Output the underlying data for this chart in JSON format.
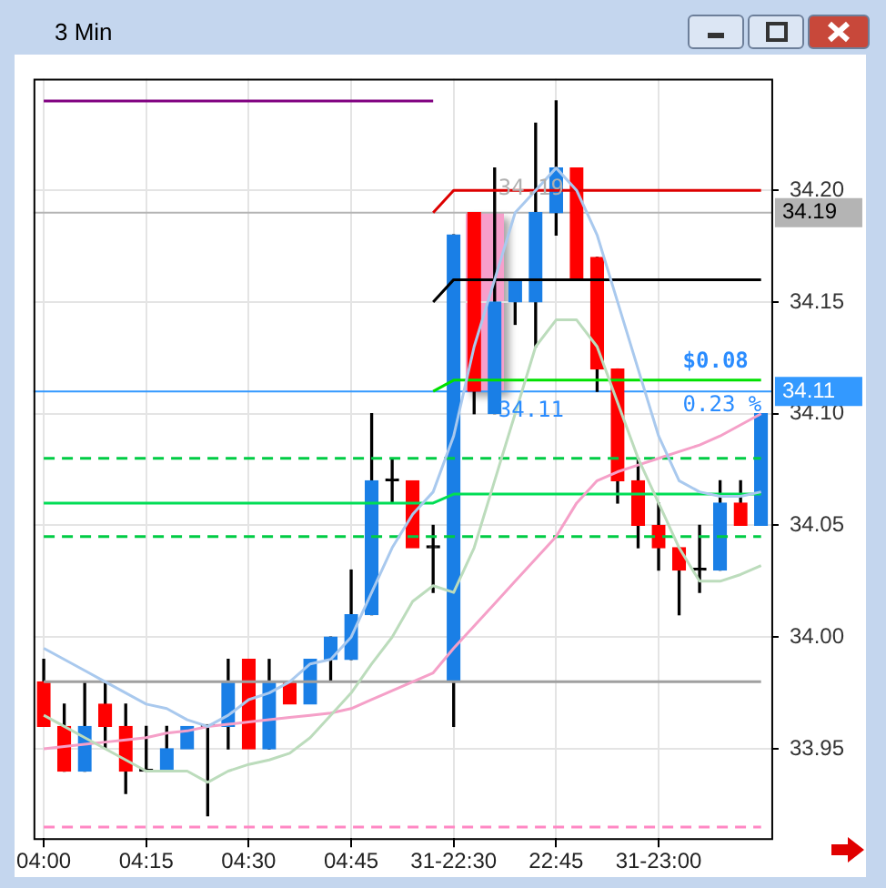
{
  "chart_data": {
    "type": "candlestick",
    "title": "3 Min",
    "categories": [
      "04:00",
      null,
      null,
      null,
      null,
      "04:15",
      null,
      null,
      null,
      null,
      "04:30",
      null,
      null,
      null,
      null,
      "04:45",
      null,
      null,
      null,
      null,
      "31-22:30",
      null,
      null,
      null,
      null,
      "22:45",
      null,
      null,
      null,
      null,
      "31-23:00",
      null,
      null,
      null,
      null,
      null
    ],
    "series": [
      {
        "type": "line",
        "color": "#a9c9ee",
        "values": [
          33.995,
          33.99,
          33.985,
          33.98,
          33.975,
          33.97,
          33.968,
          33.963,
          33.96,
          33.965,
          33.972,
          33.975,
          33.98,
          33.988,
          33.99,
          34.0,
          34.02,
          34.04,
          34.055,
          34.065,
          34.09,
          34.13,
          34.16,
          34.19,
          34.2,
          34.21,
          34.2,
          34.18,
          34.15,
          34.12,
          34.09,
          34.07,
          34.065,
          34.063,
          34.063,
          34.065
        ]
      },
      {
        "type": "line",
        "color": "#bcdcbc",
        "values": [
          33.965,
          33.96,
          33.955,
          33.95,
          33.945,
          33.94,
          33.94,
          33.94,
          33.935,
          33.94,
          33.943,
          33.945,
          33.948,
          33.955,
          33.965,
          33.975,
          33.988,
          34.0,
          34.016,
          34.023,
          34.02,
          34.04,
          34.07,
          34.1,
          34.13,
          34.142,
          34.142,
          34.13,
          34.105,
          34.08,
          34.06,
          34.04,
          34.025,
          34.025,
          34.028,
          34.032
        ]
      },
      {
        "type": "line",
        "color": "#f5a0c8",
        "values": [
          33.95,
          33.951,
          33.952,
          33.953,
          33.954,
          33.955,
          33.957,
          33.958,
          33.96,
          33.961,
          33.962,
          33.963,
          33.964,
          33.965,
          33.966,
          33.968,
          33.972,
          33.976,
          33.98,
          33.984,
          33.995,
          34.005,
          34.015,
          34.025,
          34.035,
          34.045,
          34.06,
          34.07,
          34.074,
          34.077,
          34.08,
          34.083,
          34.086,
          34.09,
          34.095,
          34.1
        ]
      },
      {
        "type": "line",
        "color": "#800080",
        "values": [
          34.24,
          34.24,
          34.24,
          34.24,
          34.24,
          34.24,
          34.24,
          34.24,
          34.24,
          34.24,
          34.24,
          34.24,
          34.24,
          34.24,
          34.24,
          34.24,
          34.24,
          34.24,
          34.24,
          34.24,
          null,
          null,
          null,
          null,
          null,
          null,
          null,
          null,
          null,
          null,
          null,
          null,
          null,
          null,
          null,
          null
        ]
      },
      {
        "type": "line",
        "color": "#dd0000",
        "values": [
          null,
          null,
          null,
          null,
          null,
          null,
          null,
          null,
          null,
          null,
          null,
          null,
          null,
          null,
          null,
          null,
          null,
          null,
          null,
          34.19,
          34.2,
          34.2,
          34.2,
          34.2,
          34.2,
          34.2,
          34.2,
          34.2,
          34.2,
          34.2,
          34.2,
          34.2,
          34.2,
          34.2,
          34.2,
          34.2
        ]
      },
      {
        "type": "line",
        "color": "#000000",
        "values": [
          null,
          null,
          null,
          null,
          null,
          null,
          null,
          null,
          null,
          null,
          null,
          null,
          null,
          null,
          null,
          null,
          null,
          null,
          null,
          34.15,
          34.16,
          34.16,
          34.16,
          34.16,
          34.16,
          34.16,
          34.16,
          34.16,
          34.16,
          34.16,
          34.16,
          34.16,
          34.16,
          34.16,
          34.16,
          34.16
        ]
      },
      {
        "type": "line",
        "color": "#00e000",
        "values": [
          null,
          null,
          null,
          null,
          null,
          null,
          null,
          null,
          null,
          null,
          null,
          null,
          null,
          null,
          null,
          null,
          null,
          null,
          null,
          34.11,
          34.115,
          34.115,
          34.115,
          34.115,
          34.115,
          34.115,
          34.115,
          34.115,
          34.115,
          34.115,
          34.115,
          34.115,
          34.115,
          34.115,
          34.115,
          34.115
        ]
      },
      {
        "type": "line",
        "color": "#00cc44",
        "line_style": "dashed",
        "values": [
          34.08,
          34.08,
          34.08,
          34.08,
          34.08,
          34.08,
          34.08,
          34.08,
          34.08,
          34.08,
          34.08,
          34.08,
          34.08,
          34.08,
          34.08,
          34.08,
          34.08,
          34.08,
          34.08,
          34.08,
          34.08,
          34.08,
          34.08,
          34.08,
          34.08,
          34.08,
          34.08,
          34.08,
          34.08,
          34.08,
          34.08,
          34.08,
          34.08,
          34.08,
          34.08,
          34.08
        ]
      },
      {
        "type": "line",
        "color": "#00dd55",
        "values": [
          34.06,
          34.06,
          34.06,
          34.06,
          34.06,
          34.06,
          34.06,
          34.06,
          34.06,
          34.06,
          34.06,
          34.06,
          34.06,
          34.06,
          34.06,
          34.06,
          34.06,
          34.06,
          34.06,
          34.06,
          34.064,
          34.064,
          34.064,
          34.064,
          34.064,
          34.064,
          34.064,
          34.064,
          34.064,
          34.064,
          34.064,
          34.064,
          34.064,
          34.064,
          34.064,
          34.064
        ]
      },
      {
        "type": "line",
        "color": "#00cc44",
        "line_style": "dashed",
        "values": [
          34.045,
          34.045,
          34.045,
          34.045,
          34.045,
          34.045,
          34.045,
          34.045,
          34.045,
          34.045,
          34.045,
          34.045,
          34.045,
          34.045,
          34.045,
          34.045,
          34.045,
          34.045,
          34.045,
          34.045,
          34.045,
          34.045,
          34.045,
          34.045,
          34.045,
          34.045,
          34.045,
          34.045,
          34.045,
          34.045,
          34.045,
          34.045,
          34.045,
          34.045,
          34.045,
          34.045
        ]
      },
      {
        "type": "line",
        "color": "#a0a0a0",
        "values": [
          33.98,
          33.98,
          33.98,
          33.98,
          33.98,
          33.98,
          33.98,
          33.98,
          33.98,
          33.98,
          33.98,
          33.98,
          33.98,
          33.98,
          33.98,
          33.98,
          33.98,
          33.98,
          33.98,
          33.98,
          33.98,
          33.98,
          33.98,
          33.98,
          33.98,
          33.98,
          33.98,
          33.98,
          33.98,
          33.98,
          33.98,
          33.98,
          33.98,
          33.98,
          33.98,
          33.98
        ]
      },
      {
        "type": "line",
        "color": "#ff88c4",
        "line_style": "dashed",
        "values": [
          33.915,
          33.915,
          33.915,
          33.915,
          33.915,
          33.915,
          33.915,
          33.915,
          33.915,
          33.915,
          33.915,
          33.915,
          33.915,
          33.915,
          33.915,
          33.915,
          33.915,
          33.915,
          33.915,
          33.915,
          33.915,
          33.915,
          33.915,
          33.915,
          33.915,
          33.915,
          33.915,
          33.915,
          33.915,
          33.915,
          33.915,
          33.915,
          33.915,
          33.915,
          33.915,
          33.915
        ]
      },
      {
        "type": "candlestick",
        "ohlc": [
          [
            33.98,
            33.99,
            33.96,
            33.96
          ],
          [
            33.96,
            33.97,
            33.94,
            33.94
          ],
          [
            33.94,
            33.98,
            33.94,
            33.96
          ],
          [
            33.97,
            33.98,
            33.95,
            33.96
          ],
          [
            33.96,
            33.97,
            33.93,
            33.94
          ],
          [
            33.94,
            33.96,
            33.94,
            33.94
          ],
          [
            33.94,
            33.96,
            33.94,
            33.95
          ],
          [
            33.95,
            33.96,
            33.95,
            33.96
          ],
          [
            33.96,
            33.96,
            33.92,
            33.96
          ],
          [
            33.96,
            33.99,
            33.95,
            33.98
          ],
          [
            33.99,
            33.99,
            33.95,
            33.95
          ],
          [
            33.95,
            33.99,
            33.95,
            33.98
          ],
          [
            33.98,
            33.98,
            33.97,
            33.97
          ],
          [
            33.97,
            33.99,
            33.97,
            33.99
          ],
          [
            33.99,
            34.0,
            33.98,
            34.0
          ],
          [
            33.99,
            34.03,
            33.99,
            34.01
          ],
          [
            34.01,
            34.1,
            34.01,
            34.07
          ],
          [
            34.07,
            34.08,
            34.06,
            34.07
          ],
          [
            34.07,
            34.07,
            34.04,
            34.04
          ],
          [
            34.04,
            34.05,
            34.02,
            34.04
          ],
          [
            33.98,
            34.18,
            33.96,
            34.18
          ],
          [
            34.19,
            34.19,
            34.1,
            34.11
          ],
          [
            34.1,
            34.21,
            34.1,
            34.15
          ],
          [
            34.15,
            34.16,
            34.14,
            34.16
          ],
          [
            34.15,
            34.23,
            34.13,
            34.19
          ],
          [
            34.19,
            34.24,
            34.18,
            34.21
          ],
          [
            34.21,
            34.21,
            34.16,
            34.16
          ],
          [
            34.17,
            34.17,
            34.11,
            34.12
          ],
          [
            34.12,
            34.12,
            34.06,
            34.07
          ],
          [
            34.07,
            34.08,
            34.04,
            34.05
          ],
          [
            34.05,
            34.06,
            34.03,
            34.04
          ],
          [
            34.04,
            34.04,
            34.01,
            34.03
          ],
          [
            34.03,
            34.05,
            34.02,
            34.03
          ],
          [
            34.03,
            34.07,
            34.03,
            34.06
          ],
          [
            34.06,
            34.07,
            34.05,
            34.05
          ],
          [
            34.05,
            34.1,
            34.05,
            34.1
          ]
        ],
        "colors": [
          "#ff0000",
          "#ff0000",
          "#1a7fe6",
          "#ff0000",
          "#ff0000",
          "#000000",
          "#1a7fe6",
          "#1a7fe6",
          "#000000",
          "#1a7fe6",
          "#ff0000",
          "#1a7fe6",
          "#ff0000",
          "#1a7fe6",
          "#1a7fe6",
          "#1a7fe6",
          "#1a7fe6",
          "#000000",
          "#ff0000",
          "#000000",
          "#1a7fe6",
          "#ff0000",
          "#1a7fe6",
          "#1a7fe6",
          "#1a7fe6",
          "#1a7fe6",
          "#ff0000",
          "#ff0000",
          "#ff0000",
          "#ff0000",
          "#ff0000",
          "#ff0000",
          "#000000",
          "#1a7fe6",
          "#ff0000",
          "#1a7fe6"
        ]
      }
    ],
    "ylim": [
      33.91,
      34.25
    ],
    "yticks": [
      {
        "value": 33.95,
        "label": "33.95"
      },
      {
        "value": 34.0,
        "label": "34.00"
      },
      {
        "value": 34.05,
        "label": "34.05"
      },
      {
        "value": 34.1,
        "label": "34.10"
      },
      {
        "value": 34.15,
        "label": "34.15"
      },
      {
        "value": 34.2,
        "label": "34.20"
      }
    ],
    "ref_lines": [
      {
        "axis": "y",
        "value": 34.19,
        "label": "34.19",
        "color": "#b4b4b4"
      },
      {
        "axis": "y",
        "value": 34.11,
        "label": "34.11",
        "color": "#3399ff"
      }
    ],
    "annotations": [
      {
        "text": "34.19",
        "y": 34.19
      },
      {
        "text": "34.11",
        "y": 34.11
      },
      {
        "text": "$0.08",
        "y": 34.11
      },
      {
        "text": "0.23 %",
        "y": 34.11
      }
    ],
    "grid": true,
    "legend": false,
    "marker": "none",
    "line_style": "solid"
  }
}
